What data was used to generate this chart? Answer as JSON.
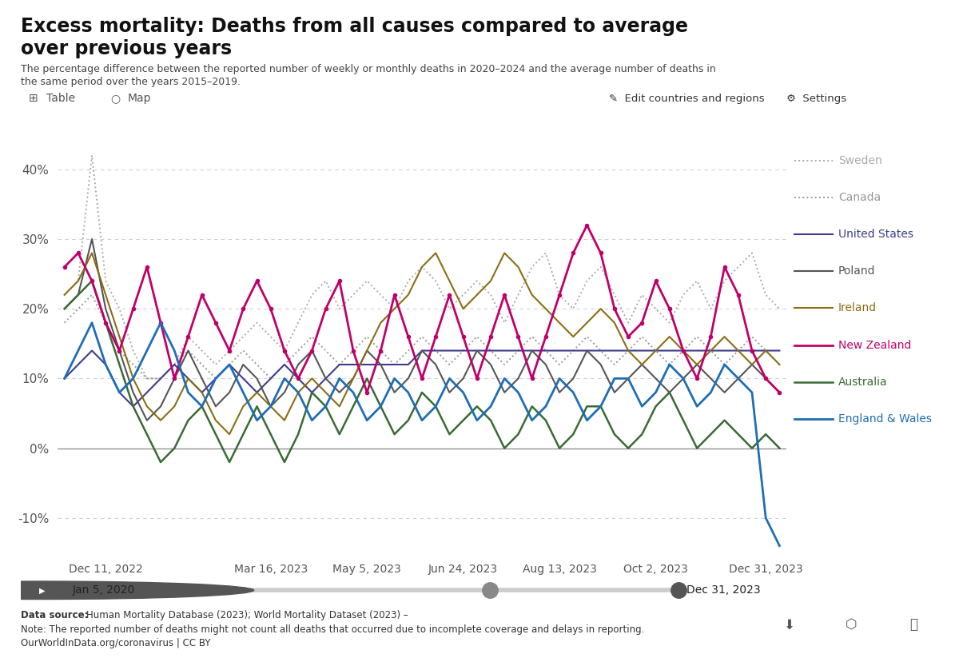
{
  "background_color": "#ffffff",
  "plot_bg_color": "#ffffff",
  "grid_color": "#d0d0d0",
  "ylim": [
    -15,
    47
  ],
  "yticks": [
    -10,
    0,
    10,
    20,
    30,
    40
  ],
  "ytick_labels": [
    "-10%",
    "0%",
    "10%",
    "20%",
    "30%",
    "40%"
  ],
  "xtick_positions": [
    3,
    15,
    22,
    29,
    36,
    43,
    51
  ],
  "xlabel_dates": [
    "Dec 11, 2022",
    "Mar 16, 2023",
    "May 5, 2023",
    "Jun 24, 2023",
    "Aug 13, 2023",
    "Oct 2, 2023",
    "Dec 31, 2023"
  ],
  "series": [
    {
      "name": "Sweden",
      "color": "#aaaaaa",
      "linewidth": 1.4,
      "linestyle": "dotted",
      "marker": null,
      "zorder": 2,
      "data_y": [
        22,
        24,
        42,
        24,
        20,
        14,
        10,
        10,
        12,
        16,
        14,
        12,
        14,
        16,
        18,
        16,
        14,
        18,
        22,
        24,
        20,
        22,
        24,
        22,
        20,
        24,
        26,
        24,
        20,
        22,
        24,
        22,
        18,
        22,
        26,
        28,
        22,
        20,
        24,
        26,
        22,
        18,
        22,
        20,
        18,
        22,
        24,
        20,
        24,
        26,
        28,
        22,
        20
      ]
    },
    {
      "name": "Canada",
      "color": "#999999",
      "linewidth": 1.4,
      "linestyle": "dotted",
      "marker": null,
      "zorder": 2,
      "data_y": [
        18,
        20,
        22,
        18,
        14,
        12,
        10,
        10,
        12,
        14,
        12,
        10,
        12,
        14,
        12,
        10,
        12,
        14,
        16,
        14,
        12,
        14,
        16,
        14,
        12,
        14,
        16,
        14,
        12,
        14,
        16,
        14,
        12,
        14,
        16,
        14,
        12,
        14,
        16,
        14,
        12,
        14,
        16,
        14,
        12,
        14,
        16,
        14,
        12,
        14,
        16,
        14,
        12
      ]
    },
    {
      "name": "United States",
      "color": "#3d3d8c",
      "linewidth": 1.5,
      "linestyle": "solid",
      "marker": null,
      "zorder": 3,
      "data_y": [
        10,
        12,
        14,
        12,
        8,
        6,
        8,
        10,
        12,
        10,
        8,
        10,
        12,
        10,
        8,
        10,
        12,
        10,
        8,
        10,
        12,
        12,
        12,
        12,
        12,
        12,
        14,
        14,
        14,
        14,
        14,
        14,
        14,
        14,
        14,
        14,
        14,
        14,
        14,
        14,
        14,
        14,
        14,
        14,
        14,
        14,
        14,
        14,
        14,
        14,
        14,
        14,
        14
      ]
    },
    {
      "name": "Poland",
      "color": "#555555",
      "linewidth": 1.5,
      "linestyle": "solid",
      "marker": null,
      "zorder": 3,
      "data_y": [
        20,
        22,
        30,
        20,
        14,
        8,
        4,
        6,
        10,
        14,
        10,
        6,
        8,
        12,
        10,
        6,
        8,
        12,
        14,
        10,
        8,
        10,
        14,
        12,
        8,
        10,
        14,
        12,
        8,
        10,
        14,
        12,
        8,
        10,
        14,
        12,
        8,
        10,
        14,
        12,
        8,
        10,
        12,
        10,
        8,
        10,
        12,
        10,
        8,
        10,
        12,
        10,
        8
      ]
    },
    {
      "name": "Ireland",
      "color": "#8b6d14",
      "linewidth": 1.5,
      "linestyle": "solid",
      "marker": null,
      "zorder": 3,
      "data_y": [
        22,
        24,
        28,
        22,
        16,
        10,
        6,
        4,
        6,
        10,
        8,
        4,
        2,
        6,
        8,
        6,
        4,
        8,
        10,
        8,
        6,
        10,
        14,
        18,
        20,
        22,
        26,
        28,
        24,
        20,
        22,
        24,
        28,
        26,
        22,
        20,
        18,
        16,
        18,
        20,
        18,
        14,
        12,
        14,
        16,
        14,
        12,
        14,
        16,
        14,
        12,
        14,
        12
      ]
    },
    {
      "name": "New Zealand",
      "color": "#c0006a",
      "linewidth": 2.0,
      "linestyle": "solid",
      "marker": "o",
      "markersize": 3,
      "zorder": 5,
      "data_y": [
        26,
        28,
        24,
        18,
        14,
        20,
        26,
        18,
        10,
        16,
        22,
        18,
        14,
        20,
        24,
        20,
        14,
        10,
        14,
        20,
        24,
        14,
        8,
        14,
        22,
        16,
        10,
        16,
        22,
        16,
        10,
        16,
        22,
        16,
        10,
        16,
        22,
        28,
        32,
        28,
        20,
        16,
        18,
        24,
        20,
        14,
        10,
        16,
        26,
        22,
        14,
        10,
        8
      ]
    },
    {
      "name": "Australia",
      "color": "#3a6b35",
      "linewidth": 1.8,
      "linestyle": "solid",
      "marker": null,
      "zorder": 4,
      "data_y": [
        20,
        22,
        24,
        18,
        12,
        6,
        2,
        -2,
        0,
        4,
        6,
        2,
        -2,
        2,
        6,
        2,
        -2,
        2,
        8,
        6,
        2,
        6,
        10,
        6,
        2,
        4,
        8,
        6,
        2,
        4,
        6,
        4,
        0,
        2,
        6,
        4,
        0,
        2,
        6,
        6,
        2,
        0,
        2,
        6,
        8,
        4,
        0,
        2,
        4,
        2,
        0,
        2,
        0
      ]
    },
    {
      "name": "England & Wales",
      "color": "#1e6eb5",
      "linewidth": 2.0,
      "linestyle": "solid",
      "marker": null,
      "zorder": 5,
      "data_y": [
        10,
        14,
        18,
        12,
        8,
        10,
        14,
        18,
        14,
        8,
        6,
        10,
        12,
        8,
        4,
        6,
        10,
        8,
        4,
        6,
        10,
        8,
        4,
        6,
        10,
        8,
        4,
        6,
        10,
        8,
        4,
        6,
        10,
        8,
        4,
        6,
        10,
        8,
        4,
        6,
        10,
        10,
        6,
        8,
        12,
        10,
        6,
        8,
        12,
        10,
        8,
        -10,
        -14
      ]
    }
  ],
  "legend_entries": [
    "Sweden",
    "Canada",
    "United States",
    "Poland",
    "Ireland",
    "New Zealand",
    "Australia",
    "England & Wales"
  ],
  "legend_colors": [
    "#aaaaaa",
    "#999999",
    "#3d3d8c",
    "#555555",
    "#8b6d14",
    "#c0006a",
    "#3a6b35",
    "#1e6eb5"
  ],
  "legend_linestyles": [
    "dotted",
    "dotted",
    "solid",
    "solid",
    "solid",
    "solid",
    "solid",
    "solid"
  ],
  "legend_linewidths": [
    1.4,
    1.4,
    1.5,
    1.5,
    1.5,
    2.0,
    1.8,
    2.0
  ]
}
